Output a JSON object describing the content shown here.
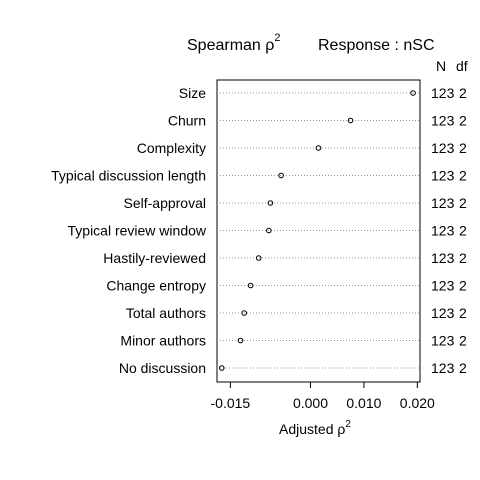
{
  "chart_data": {
    "type": "scatter",
    "title_main": "Spearman ρ",
    "title_sup": "2",
    "title_response": "Response : nSC",
    "xlabel_main": "Adjusted ρ",
    "xlabel_sup": "2",
    "xlim": [
      -0.0175,
      0.0205
    ],
    "xticks": [
      -0.015,
      0.0,
      0.01,
      0.02
    ],
    "xtick_labels": [
      "-0.015",
      "0.000",
      "0.010",
      "0.020"
    ],
    "right_headers": [
      "N",
      "df"
    ],
    "rows": [
      {
        "label": "Size",
        "value": 0.0192,
        "n": "123",
        "df": "2"
      },
      {
        "label": "Churn",
        "value": 0.0075,
        "n": "123",
        "df": "2"
      },
      {
        "label": "Complexity",
        "value": 0.0015,
        "n": "123",
        "df": "2"
      },
      {
        "label": "Typical discussion length",
        "value": -0.0055,
        "n": "123",
        "df": "2"
      },
      {
        "label": "Self-approval",
        "value": -0.0075,
        "n": "123",
        "df": "2"
      },
      {
        "label": "Typical review window",
        "value": -0.0078,
        "n": "123",
        "df": "2"
      },
      {
        "label": "Hastily-reviewed",
        "value": -0.0097,
        "n": "123",
        "df": "2"
      },
      {
        "label": "Change entropy",
        "value": -0.0112,
        "n": "123",
        "df": "2"
      },
      {
        "label": "Total authors",
        "value": -0.0124,
        "n": "123",
        "df": "2"
      },
      {
        "label": "Minor authors",
        "value": -0.0131,
        "n": "123",
        "df": "2"
      },
      {
        "label": "No discussion",
        "value": -0.0166,
        "n": "123",
        "df": "2"
      }
    ]
  }
}
